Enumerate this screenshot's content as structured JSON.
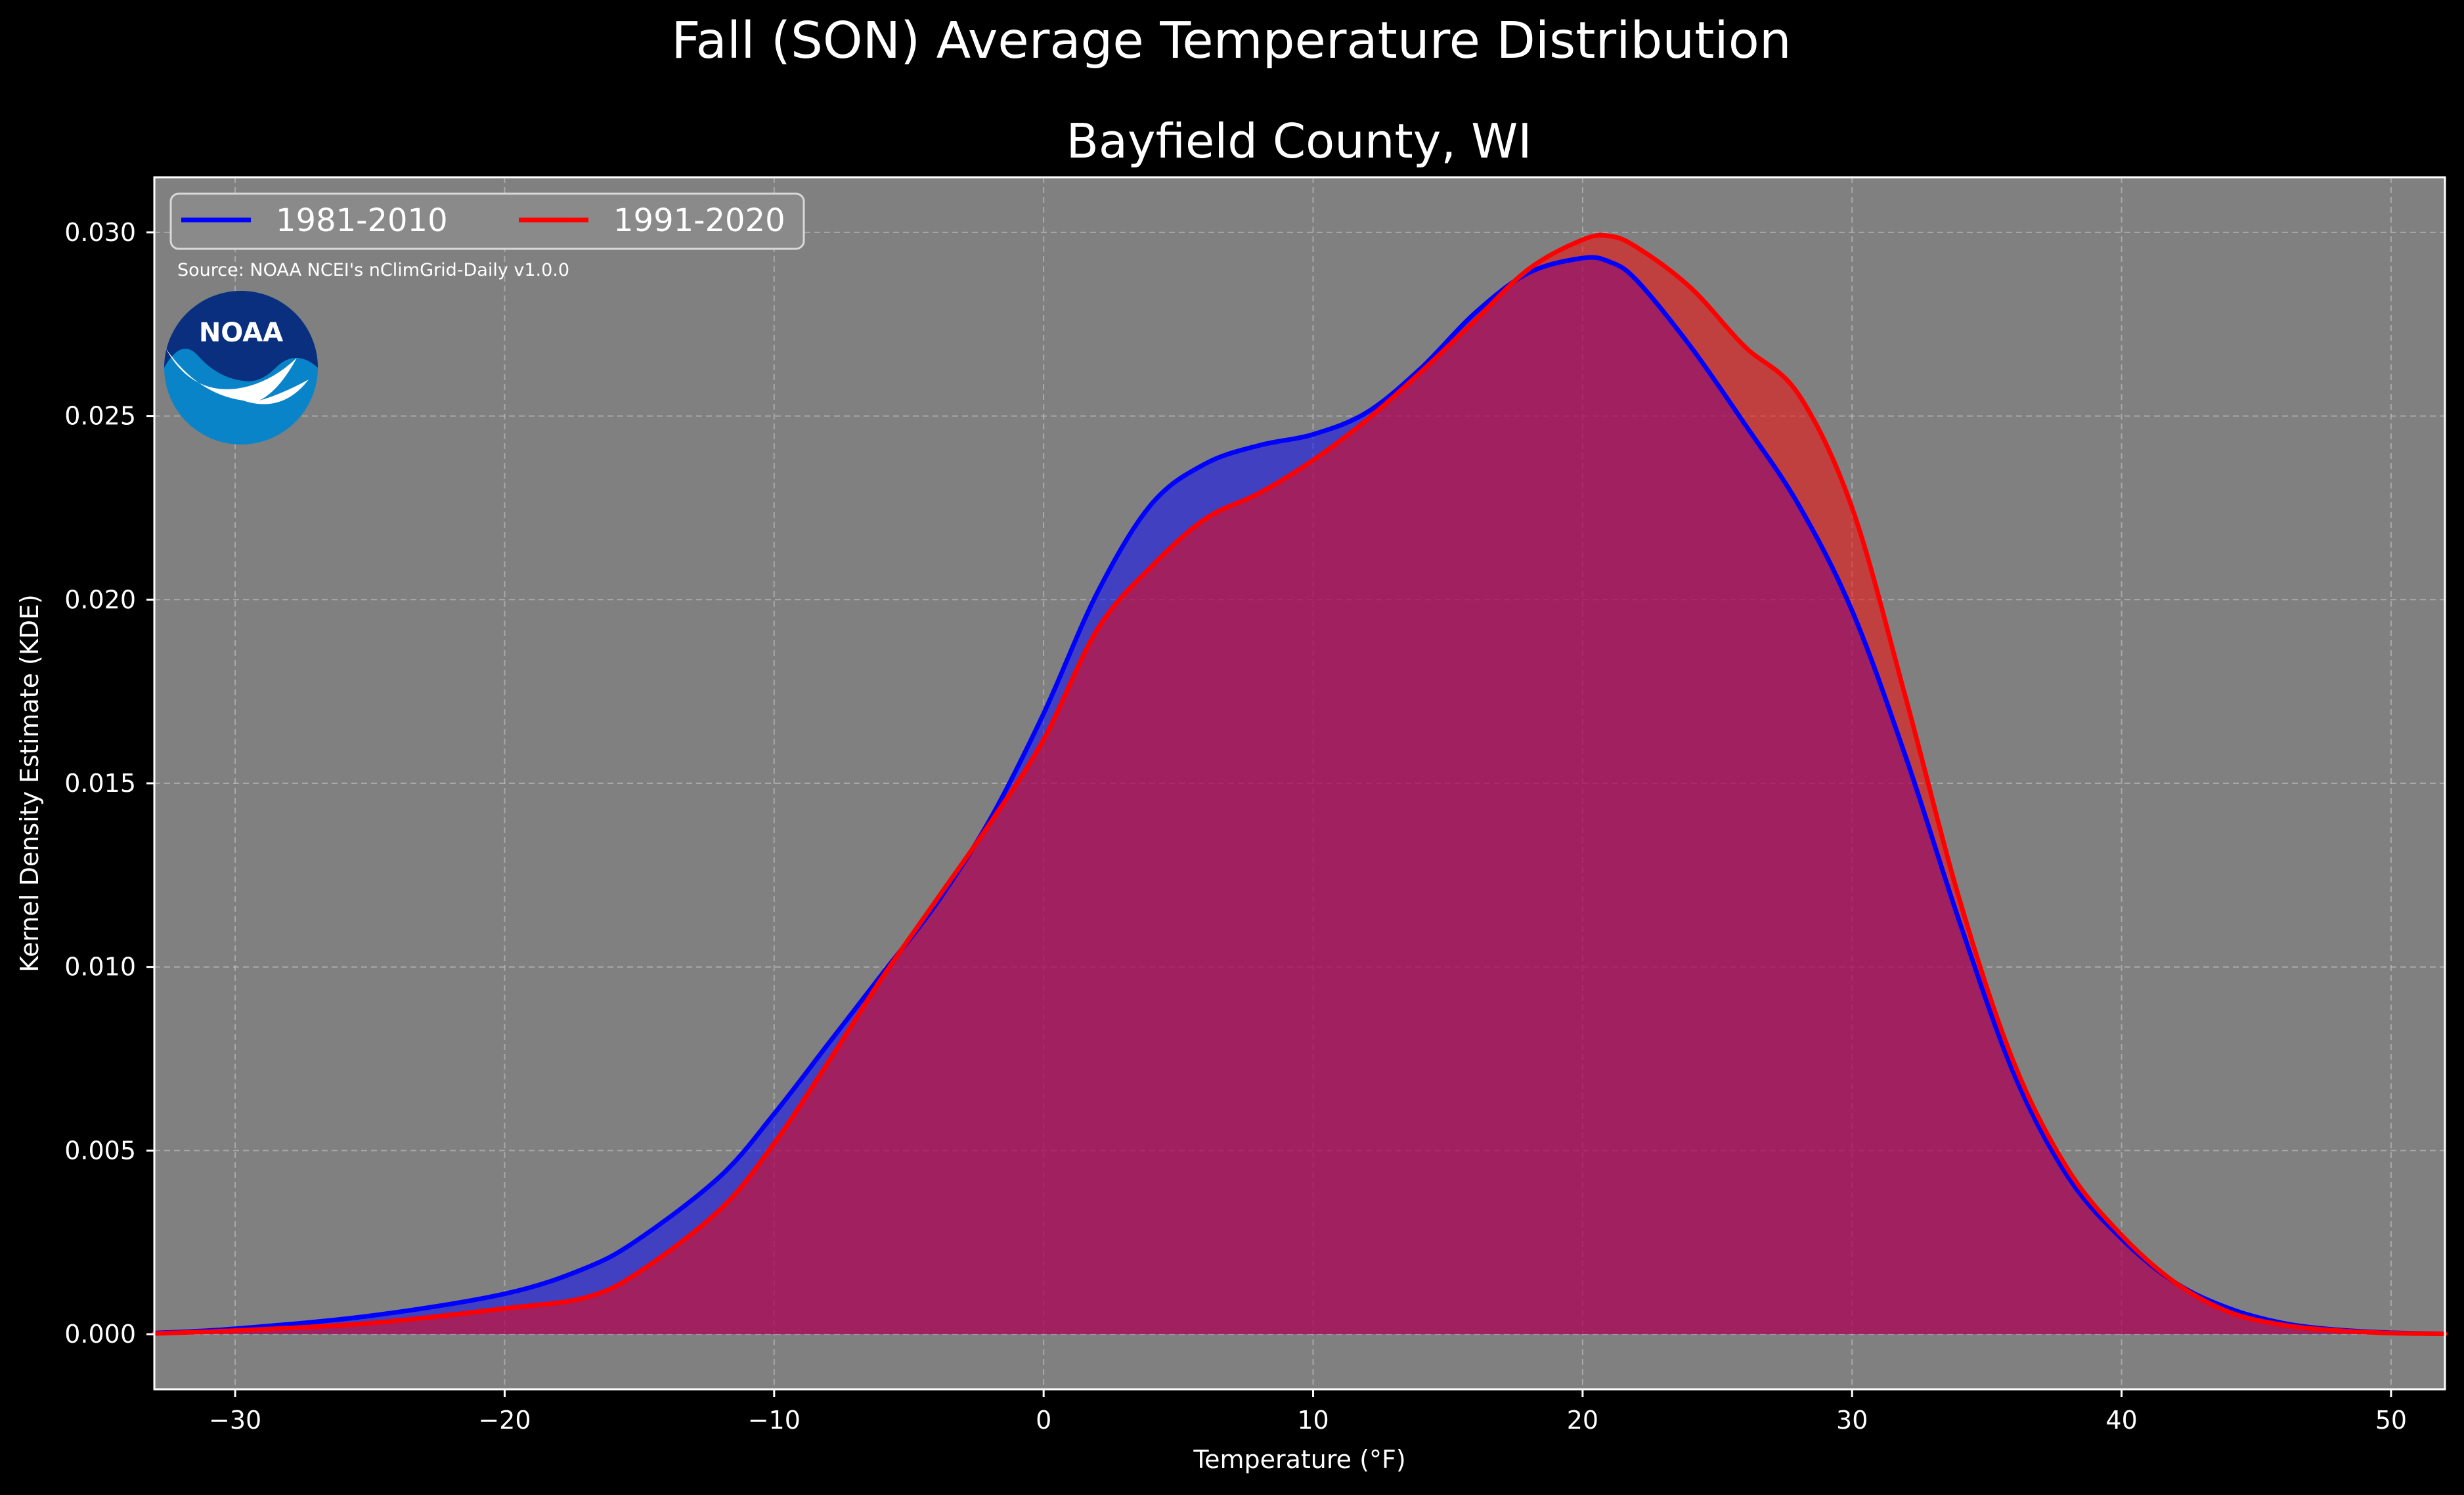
{
  "colors": {
    "background": "#000000",
    "plot_background": "#808080",
    "series_1": "#0000ff",
    "series_2": "#ff0000"
  },
  "chart_data": {
    "type": "area",
    "title": "Fall (SON) Average Temperature Distribution",
    "subtitle": "Bayfield County, WI",
    "xlabel": "Temperature (°F)",
    "ylabel": "Kernel Density Estimate (KDE)",
    "xlim": [
      -33,
      52
    ],
    "ylim": [
      -0.0015,
      0.0315
    ],
    "xticks": [
      -30,
      -20,
      -10,
      0,
      10,
      20,
      30,
      40,
      50
    ],
    "xtick_labels": [
      "−30",
      "−20",
      "−10",
      "0",
      "10",
      "20",
      "30",
      "40",
      "50"
    ],
    "yticks": [
      0.0,
      0.005,
      0.01,
      0.015,
      0.02,
      0.025,
      0.03
    ],
    "ytick_labels": [
      "0.000",
      "0.005",
      "0.010",
      "0.015",
      "0.020",
      "0.025",
      "0.030"
    ],
    "grid": true,
    "legend_position": "top-left",
    "source_note": "Source: NOAA NCEI's nClimGrid-Daily v1.0.0",
    "logo_text": "NOAA",
    "series": [
      {
        "name": "1981-2010",
        "color": "#0000ff",
        "x": [
          -33,
          -30,
          -25,
          -20,
          -17,
          -15,
          -12,
          -10,
          -8,
          -6,
          -4,
          -2,
          0,
          2,
          4,
          6,
          8,
          10,
          12,
          14,
          16,
          18,
          20,
          21,
          22,
          24,
          26,
          28,
          30,
          32,
          34,
          36,
          38,
          40,
          42,
          44,
          46,
          48,
          50,
          52
        ],
        "y": [
          3e-05,
          0.00015,
          0.0005,
          0.0011,
          0.0018,
          0.0026,
          0.0043,
          0.006,
          0.0079,
          0.0098,
          0.0117,
          0.014,
          0.0169,
          0.0202,
          0.0226,
          0.0237,
          0.0242,
          0.0245,
          0.0251,
          0.0263,
          0.0278,
          0.0289,
          0.0293,
          0.0292,
          0.0287,
          0.0269,
          0.0248,
          0.0226,
          0.0197,
          0.0157,
          0.0112,
          0.0071,
          0.0043,
          0.0026,
          0.0014,
          0.0007,
          0.0003,
          0.00012,
          4e-05,
          1e-05
        ]
      },
      {
        "name": "1991-2020",
        "color": "#ff0000",
        "x": [
          -33,
          -30,
          -25,
          -20,
          -17,
          -15,
          -12,
          -10,
          -8,
          -6,
          -4,
          -2,
          0,
          2,
          4,
          6,
          8,
          10,
          12,
          14,
          16,
          18,
          20,
          21,
          22,
          24,
          26,
          28,
          30,
          32,
          34,
          36,
          38,
          40,
          42,
          44,
          46,
          48,
          50,
          52
        ],
        "y": [
          2e-05,
          0.0001,
          0.0003,
          0.0007,
          0.001,
          0.0017,
          0.0034,
          0.0052,
          0.0074,
          0.0097,
          0.0118,
          0.0139,
          0.0162,
          0.0192,
          0.0209,
          0.0222,
          0.0229,
          0.0238,
          0.0249,
          0.0262,
          0.0276,
          0.029,
          0.0298,
          0.0299,
          0.0296,
          0.0285,
          0.0269,
          0.0256,
          0.0225,
          0.0173,
          0.0118,
          0.0074,
          0.0045,
          0.0027,
          0.0014,
          0.0006,
          0.00025,
          0.0001,
          3e-05,
          1e-05
        ]
      }
    ]
  }
}
